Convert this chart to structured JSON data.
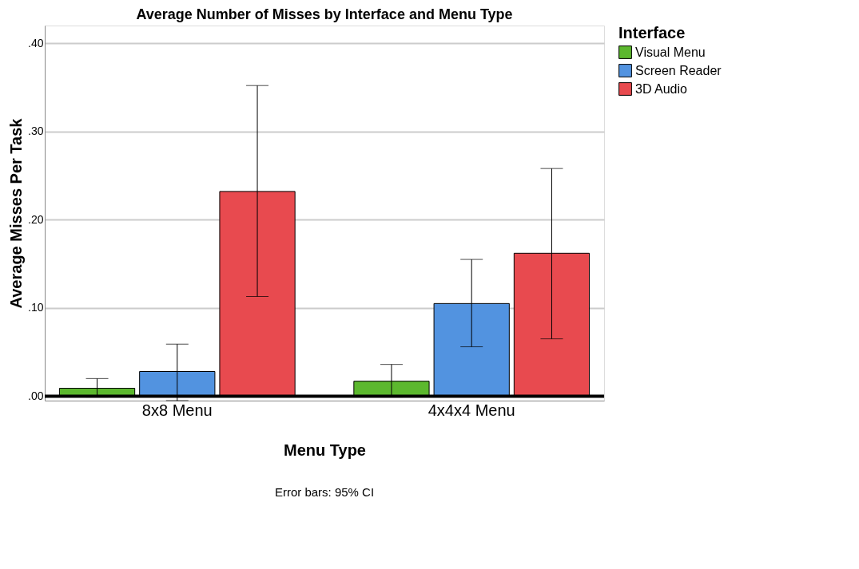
{
  "chart_data": {
    "type": "bar",
    "title": "Average Number of Misses by Interface and Menu Type",
    "xlabel": "Menu Type",
    "ylabel": "Average Misses Per Task",
    "legend_title": "Interface",
    "categories": [
      "8x8 Menu",
      "4x4x4 Menu"
    ],
    "series": [
      {
        "name": "Visual Menu",
        "color": "#5cb82e",
        "values": [
          0.009,
          0.017
        ],
        "errors": [
          [
            -0.001,
            0.02
          ],
          [
            -0.001,
            0.036
          ]
        ]
      },
      {
        "name": "Screen Reader",
        "color": "#5293e0",
        "values": [
          0.028,
          0.105
        ],
        "errors": [
          [
            -0.005,
            0.059
          ],
          [
            0.056,
            0.155
          ]
        ]
      },
      {
        "name": "3D Audio",
        "color": "#e84a4f",
        "values": [
          0.232,
          0.162
        ],
        "errors": [
          [
            0.113,
            0.352
          ],
          [
            0.065,
            0.258
          ]
        ]
      }
    ],
    "ylim": [
      -0.005,
      0.42
    ],
    "yticks": [
      {
        "value": 0,
        "label": ".00"
      },
      {
        "value": 0.1,
        "label": ".10"
      },
      {
        "value": 0.2,
        "label": ".20"
      },
      {
        "value": 0.3,
        "label": ".30"
      },
      {
        "value": 0.4,
        "label": ".40"
      }
    ],
    "grid": "y",
    "legend": "top right",
    "ref_lines": [
      {
        "axis": "y",
        "value": 0,
        "color": "#000000"
      }
    ],
    "annotations": [
      "Error bars: 95% CI"
    ]
  }
}
